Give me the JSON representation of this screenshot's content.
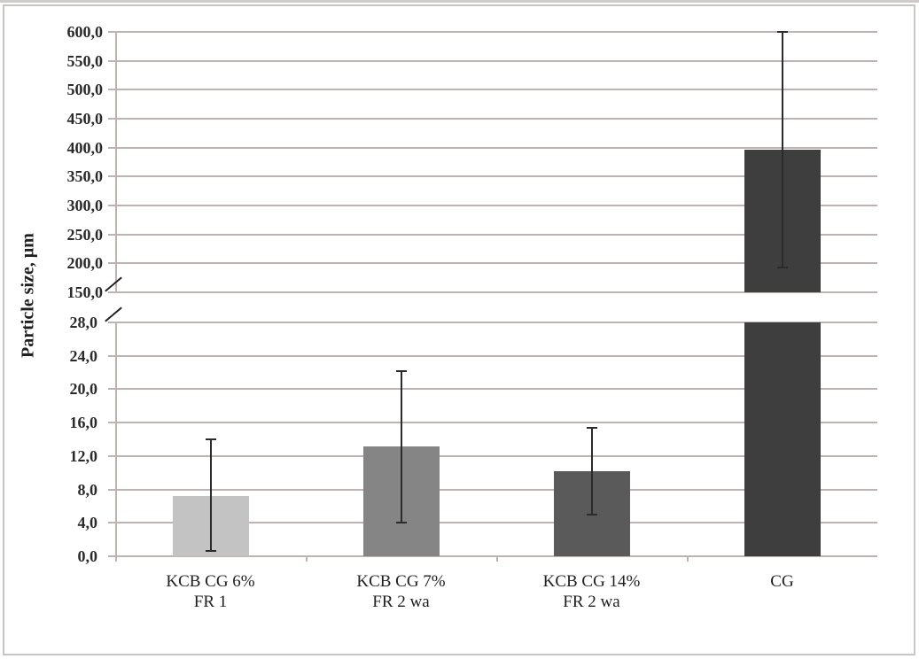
{
  "chart_data": {
    "type": "bar",
    "title": "",
    "xlabel": "",
    "ylabel": "Particle size, µm",
    "categories": [
      "KCB CG 6% FR 1",
      "KCB CG 7% FR 2 wa",
      "KCB CG 14% FR 2 wa",
      "CG"
    ],
    "category_lines": [
      [
        "KCB CG 6%",
        "FR 1"
      ],
      [
        "KCB CG 7%",
        "FR 2 wa"
      ],
      [
        "KCB CG 14%",
        "FR 2 wa"
      ],
      [
        "CG",
        ""
      ]
    ],
    "values": [
      7.2,
      13.2,
      10.2,
      397.0
    ],
    "error_bars": [
      {
        "low": 0.6,
        "high": 14.0
      },
      {
        "low": 4.0,
        "high": 22.2
      },
      {
        "low": 5.0,
        "high": 15.4
      },
      {
        "low": 193.0,
        "high": 600.0
      }
    ],
    "bar_colors": [
      "#c3c3c3",
      "#858585",
      "#5a5a5a",
      "#3e3e3e"
    ],
    "broken_axis": true,
    "lower_segment": {
      "ylim": [
        0,
        28
      ],
      "ticks": [
        "0,0",
        "4,0",
        "8,0",
        "12,0",
        "16,0",
        "20,0",
        "24,0",
        "28,0"
      ]
    },
    "upper_segment": {
      "ylim": [
        150,
        600
      ],
      "ticks": [
        "150,0",
        "200,0",
        "250,0",
        "300,0",
        "350,0",
        "400,0",
        "450,0",
        "500,0",
        "550,0",
        "600,0"
      ]
    },
    "grid": true,
    "legend": null
  }
}
